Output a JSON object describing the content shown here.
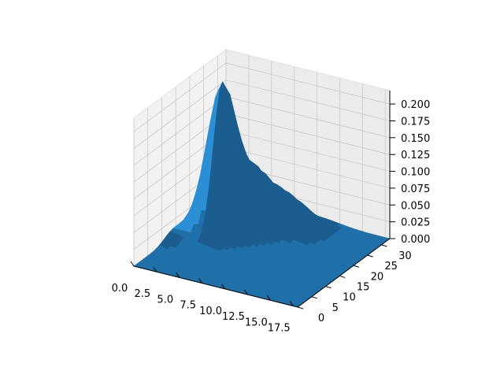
{
  "chart_data": {
    "type": "surface3d",
    "title": "",
    "xlabel": "",
    "ylabel": "",
    "zlabel": "",
    "x_range": [
      0,
      18
    ],
    "y_range": [
      0,
      33
    ],
    "z_range": [
      0,
      0.22
    ],
    "x_ticks": [
      "0.0",
      "2.5",
      "5.0",
      "7.5",
      "10.0",
      "12.5",
      "15.0",
      "17.5"
    ],
    "y_ticks": [
      "0",
      "5",
      "10",
      "15",
      "20",
      "25",
      "30"
    ],
    "z_ticks": [
      "0.000",
      "0.025",
      "0.050",
      "0.075",
      "0.100",
      "0.125",
      "0.150",
      "0.175",
      "0.200"
    ],
    "grid": true,
    "surface_color": "#1f77b4",
    "pane_color": "#f2f2f2",
    "peaks": [
      {
        "x": 3,
        "y": 22,
        "z": 0.21
      },
      {
        "x": 6,
        "y": 25,
        "z": 0.065
      },
      {
        "x": 8,
        "y": 27,
        "z": 0.04
      },
      {
        "x": 10,
        "y": 28,
        "z": 0.025
      }
    ]
  }
}
